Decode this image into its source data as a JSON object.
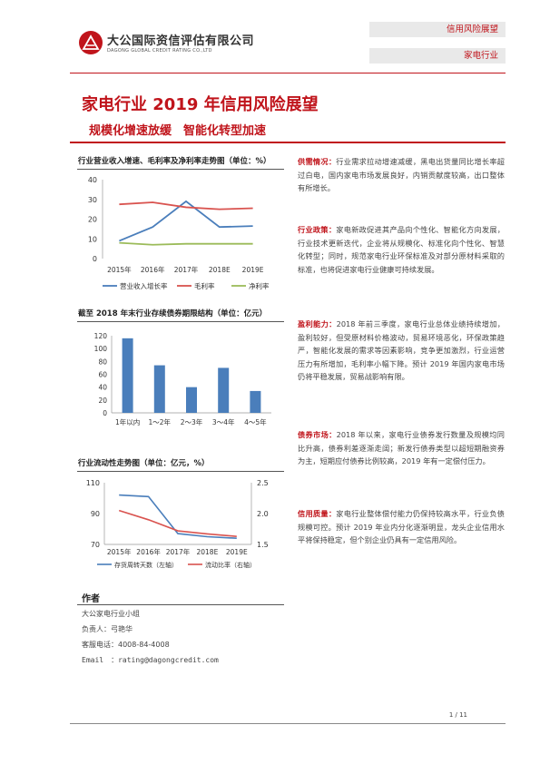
{
  "header": {
    "logo_cn": "大公国际资信评估有限公司",
    "logo_en": "DAGONG GLOBAL CREDIT RATING CO.,LTD",
    "tag_top": "信用风险展望",
    "tag_bottom": "家电行业",
    "brand_color": "#c0141b"
  },
  "title": "家电行业 2019 年信用风险展望",
  "subtitle": "规模化增速放缓　智能化转型加速",
  "charts": {
    "chart1_title": "行业营业收入增速、毛利率及净利率走势图（单位：%）",
    "chart2_title": "截至 2018 年末行业存续债券期限结构（单位：亿元）",
    "chart3_title": "行业流动性走势图（单位：亿元，%）"
  },
  "chart_data": [
    {
      "type": "line",
      "title": "行业营业收入增速、毛利率及净利率走势图（单位：%）",
      "categories": [
        "2015年",
        "2016年",
        "2017年",
        "2018E",
        "2019E"
      ],
      "ylim": [
        0,
        40
      ],
      "yticks": [
        "0",
        "10",
        "20",
        "30",
        "40"
      ],
      "series": [
        {
          "name": "营业收入增长率",
          "values": [
            9,
            16,
            29,
            16,
            16.5
          ],
          "color": "#4a7ebb"
        },
        {
          "name": "毛利率",
          "values": [
            27.5,
            28.5,
            26,
            25,
            25.5
          ],
          "color": "#d9534f"
        },
        {
          "name": "净利率",
          "values": [
            8,
            7,
            7.5,
            7.5,
            7.5
          ],
          "color": "#9bbb59"
        }
      ],
      "legend": "bottom"
    },
    {
      "type": "bar",
      "title": "截至 2018 年末行业存续债券期限结构（单位：亿元）",
      "categories": [
        "1年以内",
        "1～2年",
        "2～3年",
        "3～4年",
        "4～5年"
      ],
      "values": [
        116,
        74,
        40,
        70,
        34
      ],
      "ylim": [
        0,
        120
      ],
      "yticks": [
        "0",
        "20",
        "40",
        "60",
        "80",
        "100",
        "120"
      ],
      "color": "#4a7ebb"
    },
    {
      "type": "line",
      "title": "行业流动性走势图（单位：亿元，%）",
      "categories": [
        "2015年",
        "2016年",
        "2017年",
        "2018E",
        "2019E"
      ],
      "ylim_left": [
        70,
        110
      ],
      "ylim_right": [
        1.5,
        2.5
      ],
      "yticks_left": [
        "70",
        "90",
        "110"
      ],
      "yticks_right": [
        "1.5",
        "2.0",
        "2.5"
      ],
      "series": [
        {
          "name": "存货周转天数（左轴）",
          "axis": "left",
          "values": [
            102,
            101,
            77,
            75,
            74
          ],
          "color": "#4a7ebb"
        },
        {
          "name": "流动比率（右轴）",
          "axis": "right",
          "values": [
            2.05,
            1.9,
            1.72,
            1.67,
            1.63
          ],
          "color": "#d9534f"
        }
      ],
      "legend": "bottom"
    }
  ],
  "paragraphs": {
    "p1_kw": "供需情况：",
    "p1": "行业需求拉动增速减缓，黑电出货量同比增长率超过白电，国内家电市场发展良好，内销贡献度较高，出口整体有所增长。",
    "p2_kw": "行业政策：",
    "p2": "家电新政促进其产品向个性化、智能化方向发展，行业技术更新迭代，企业将从规模化、标准化向个性化、智慧化转型；同时，规范家电行业环保标准及对部分原材料采取的标准，也将促进家电行业健康可持续发展。",
    "p3_kw": "盈利能力：",
    "p3": "2018 年前三季度，家电行业总体业绩持续增加，盈利较好，但受原材料价格波动，贸易环境恶化，环保政策趋严，智能化发展的需求等因素影响，竞争更加激烈，行业运营压力有所增加，毛利率小幅下降。预计 2019 年国内家电市场仍将平稳发展，贸易战影响有限。",
    "p4_kw": "债券市场：",
    "p4": "2018 年以来，家电行业债券发行数量及规模均同比升高，债券利差逐渐走阔；新发行债券类型以超短期融资券为主，短期应付债券比例较高，2019 年有一定偿付压力。",
    "p5_kw": "信用质量：",
    "p5": "家电行业整体偿付能力仍保持较高水平，行业负债规模可控。预计 2019 年业内分化逐渐明显，龙头企业信用水平将保持稳定，但个别企业仍具有一定信用风险。"
  },
  "author": {
    "heading": "作者",
    "team": "大公家电行业小组",
    "person": "负责人：弓艳华",
    "phone": "客服电话：4008-84-4008",
    "email": "Email　：rating@dagongcredit.com"
  },
  "page_number": "1 / 11"
}
